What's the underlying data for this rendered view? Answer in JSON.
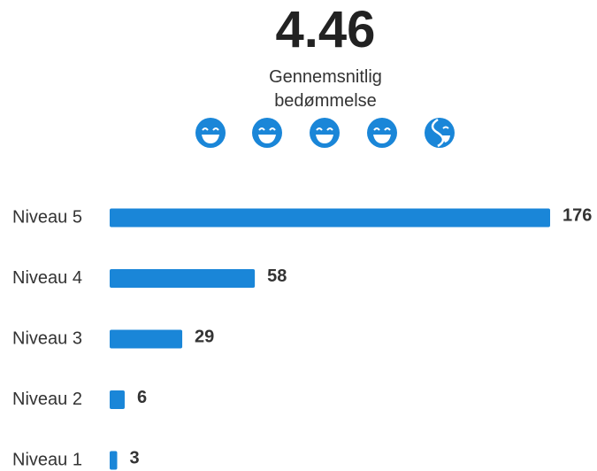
{
  "chart_data": {
    "type": "bar",
    "orientation": "horizontal",
    "title": "4.46",
    "subtitle": "Gennemsnitlig bedømmelse",
    "categories": [
      "Niveau 5",
      "Niveau 4",
      "Niveau 3",
      "Niveau 2",
      "Niveau 1"
    ],
    "values": [
      176,
      58,
      29,
      6,
      3
    ],
    "color": "#1a86d8"
  }
}
